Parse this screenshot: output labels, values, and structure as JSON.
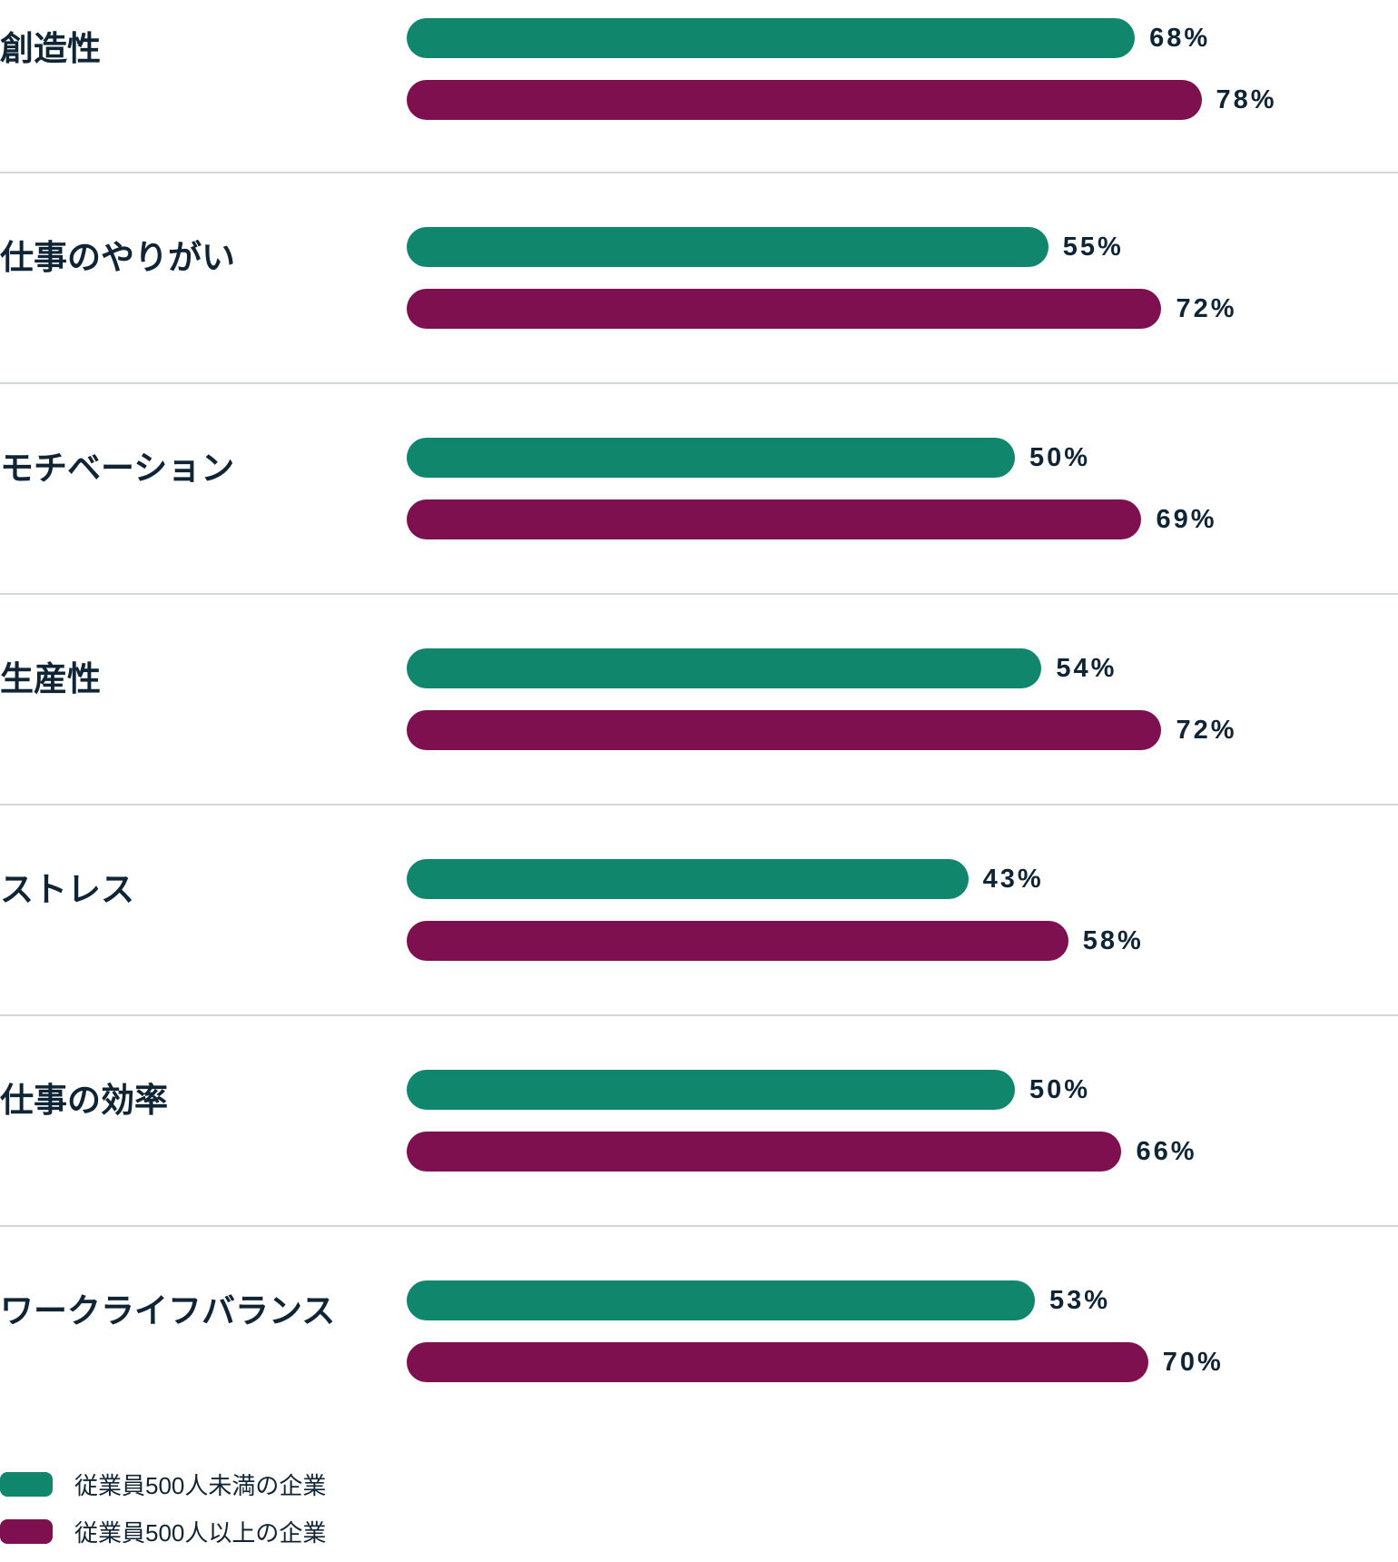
{
  "chart_data": {
    "type": "bar",
    "orientation": "horizontal",
    "categories": [
      "創造性",
      "仕事のやりがい",
      "モチベーション",
      "生産性",
      "ストレス",
      "仕事の効率",
      "ワークライフバランス"
    ],
    "series": [
      {
        "name": "従業員500人未満の企業",
        "color": "#10876d",
        "values": [
          68,
          55,
          50,
          54,
          43,
          50,
          53
        ]
      },
      {
        "name": "従業員500人以上の企業",
        "color": "#7f1050",
        "values": [
          78,
          72,
          69,
          72,
          58,
          66,
          70
        ]
      }
    ],
    "unit": "%",
    "grid": false,
    "legend_position": "bottom-left"
  }
}
